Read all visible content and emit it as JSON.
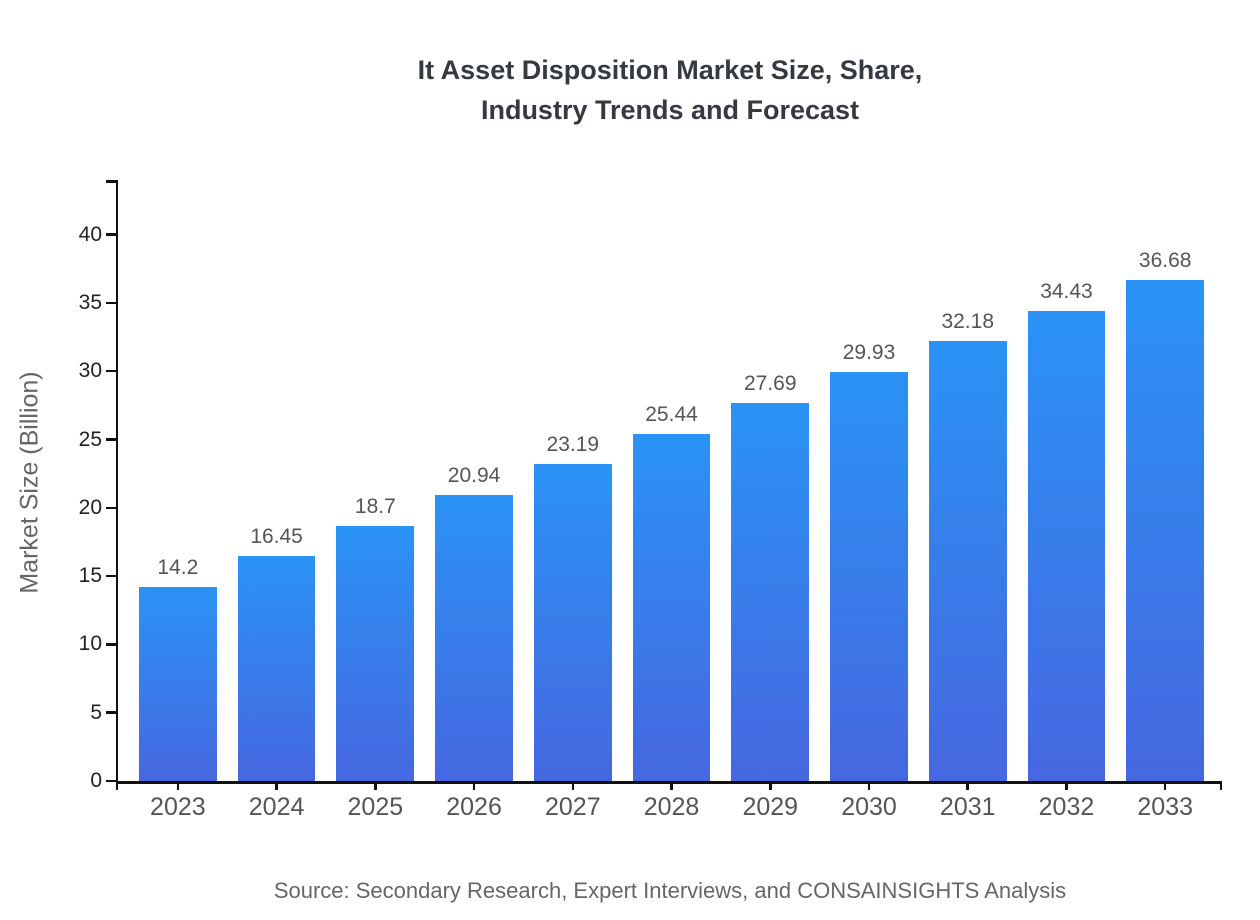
{
  "header": {
    "title_line1": "It Asset Disposition Market Size, Share,",
    "title_line2": "Industry Trends and Forecast"
  },
  "chart_data": {
    "type": "bar",
    "title": "It Asset Disposition Market Size, Share, Industry Trends and Forecast",
    "categories": [
      "2023",
      "2024",
      "2025",
      "2026",
      "2027",
      "2028",
      "2029",
      "2030",
      "2031",
      "2032",
      "2033"
    ],
    "values": [
      14.2,
      16.45,
      18.7,
      20.94,
      23.19,
      25.44,
      27.69,
      29.93,
      32.18,
      34.43,
      36.68
    ],
    "value_labels": [
      "14.2",
      "16.45",
      "18.7",
      "20.94",
      "23.19",
      "25.44",
      "27.69",
      "29.93",
      "32.18",
      "34.43",
      "36.68"
    ],
    "xlabel": "",
    "ylabel": "Market Size (Billion)",
    "ylim": [
      0,
      44
    ],
    "yticks": [
      0,
      5,
      10,
      15,
      20,
      25,
      30,
      35,
      40
    ],
    "grid": false,
    "legend": "none",
    "bar_color_top": "#2a93f5",
    "bar_color_bottom": "#4667e0"
  },
  "footer": {
    "source_text": "Source: Secondary Research, Expert Interviews, and CONSAINSIGHTS Analysis"
  },
  "colors": {
    "title_text": "#343a40",
    "axis_line": "#111111",
    "tick_label": "#222222",
    "category_label": "#555555",
    "value_label": "#555555",
    "muted_text": "#666666",
    "background": "#ffffff"
  }
}
